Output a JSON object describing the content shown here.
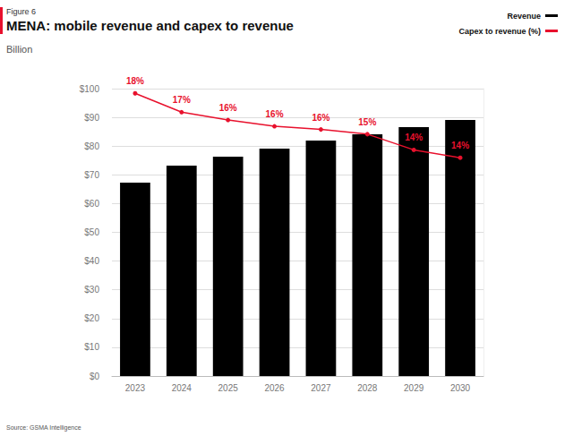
{
  "chart_data": {
    "type": "bar",
    "title": "MENA: mobile revenue and capex to revenue",
    "subtitle": "Billion",
    "annotations": [
      "Figure 6",
      "Source: GSMA Intelligence"
    ],
    "categories": [
      "2023",
      "2024",
      "2025",
      "2026",
      "2027",
      "2028",
      "2029",
      "2030"
    ],
    "series": [
      {
        "name": "Revenue",
        "type": "bar",
        "color": "#000000",
        "values": [
          67.3,
          73.2,
          76.3,
          79.1,
          81.9,
          84.1,
          86.6,
          89.1
        ]
      },
      {
        "name": "Capex to revenue (%)",
        "type": "line",
        "axis": "y2",
        "color": "#e8112d",
        "marker": "circle",
        "values": [
          18.0,
          16.8,
          16.3,
          15.9,
          15.7,
          15.4,
          14.4,
          13.9
        ],
        "value_labels": [
          "18%",
          "17%",
          "16%",
          "16%",
          "16%",
          "15%",
          "14%",
          "14%"
        ],
        "data_labels": true
      }
    ],
    "ylim": [
      0,
      100
    ],
    "yticks": [
      {
        "value": 0,
        "label": "$0"
      },
      {
        "value": 10,
        "label": "$10"
      },
      {
        "value": 20,
        "label": "$20"
      },
      {
        "value": 30,
        "label": "$30"
      },
      {
        "value": 40,
        "label": "$40"
      },
      {
        "value": 50,
        "label": "$50"
      },
      {
        "value": 60,
        "label": "$60"
      },
      {
        "value": 70,
        "label": "$70"
      },
      {
        "value": 80,
        "label": "$80"
      },
      {
        "value": 90,
        "label": "$90"
      },
      {
        "value": 100,
        "label": "$100"
      }
    ],
    "y2lim": [
      0,
      18.3
    ],
    "y2ticks": [],
    "grid": true,
    "legend": "top-right"
  }
}
